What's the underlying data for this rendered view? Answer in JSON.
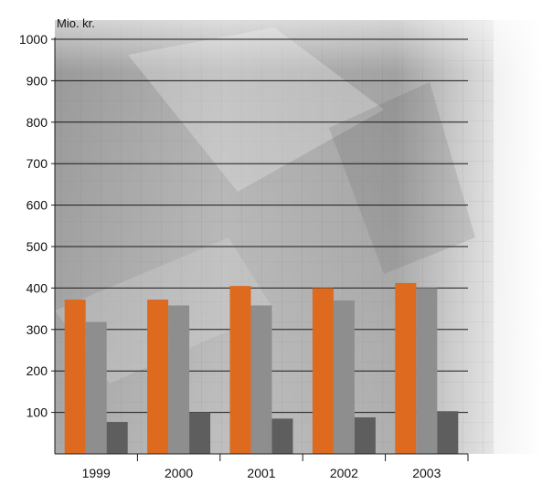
{
  "chart_data": {
    "type": "bar",
    "ylabel": "Mio. kr.",
    "categories": [
      "1999",
      "2000",
      "2001",
      "2002",
      "2003"
    ],
    "series": [
      {
        "values": [
          372,
          372,
          405,
          400,
          412
        ]
      },
      {
        "values": [
          318,
          358,
          358,
          370,
          400
        ]
      },
      {
        "values": [
          77,
          100,
          85,
          88,
          103
        ]
      }
    ],
    "ylim": [
      0,
      1000
    ],
    "yticks": [
      100,
      200,
      300,
      400,
      500,
      600,
      700,
      800,
      900,
      1000
    ],
    "grid": true,
    "colors": [
      "#dd6a1f",
      "#8e8e8e",
      "#5e5e5e"
    ]
  }
}
